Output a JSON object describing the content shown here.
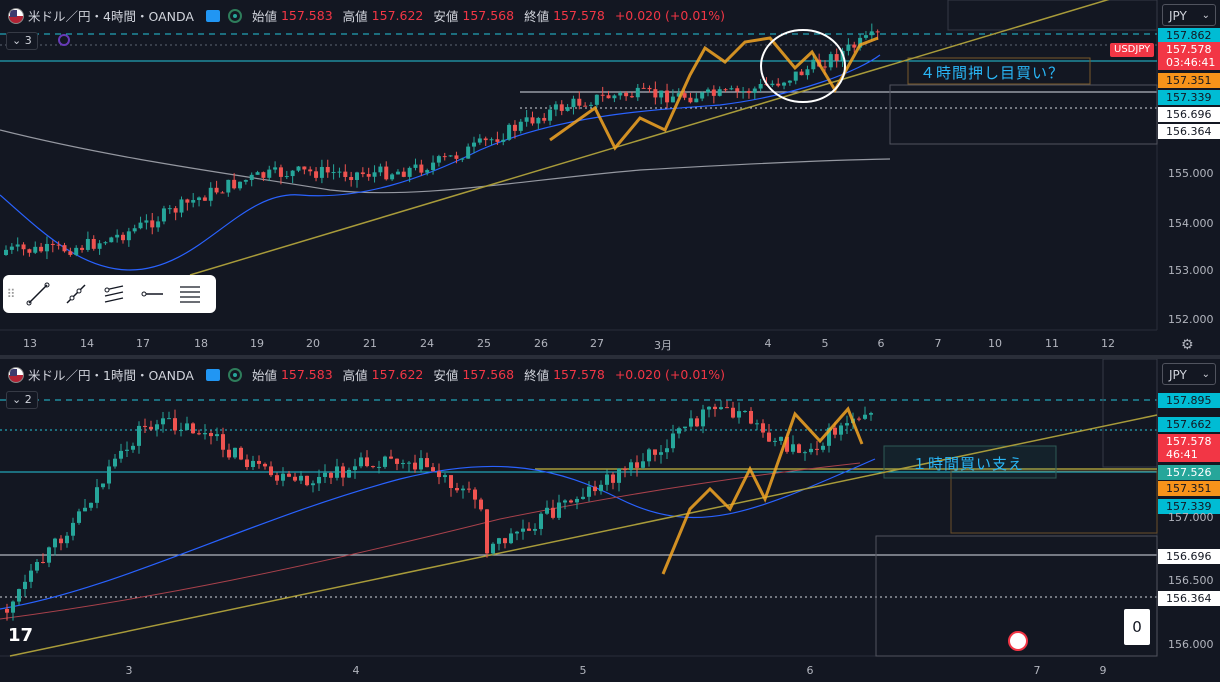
{
  "theme": {
    "bg": "#131722",
    "up": "#26a69a",
    "down": "#ef5350",
    "accent": "#2196f3",
    "highlight": "#f5a623",
    "gold": "#a89b3a"
  },
  "pane1": {
    "header": {
      "symbol": "米ドル／円・4時間・OANDA",
      "open_label": "始値",
      "open": "157.583",
      "high_label": "高値",
      "high": "157.622",
      "low_label": "安値",
      "low": "157.568",
      "close_label": "終値",
      "close": "157.578",
      "change": "+0.020 (+0.01%)"
    },
    "indicator_count": "3",
    "symbol_button": "JPY",
    "symbol_tag": "USDJPY",
    "price_labels": [
      {
        "text": "157.862",
        "bg": "#00bcd4",
        "fg": "#131722"
      },
      {
        "text": "157.578",
        "bg": "#f23645",
        "fg": "#ffffff"
      },
      {
        "text": "03:46:41",
        "bg": "#f23645",
        "fg": "#ffffff"
      },
      {
        "text": "157.351",
        "bg": "#f7931a",
        "fg": "#131722"
      },
      {
        "text": "157.339",
        "bg": "#00bcd4",
        "fg": "#131722"
      },
      {
        "text": "156.696",
        "bg": "#ffffff",
        "fg": "#131722"
      },
      {
        "text": "156.364",
        "bg": "#ffffff",
        "fg": "#131722"
      }
    ],
    "axis_prices": [
      "155.000",
      "154.000",
      "153.000",
      "152.000"
    ],
    "x_labels": [
      "13",
      "14",
      "17",
      "18",
      "19",
      "20",
      "21",
      "24",
      "25",
      "26",
      "27",
      "3月",
      "4",
      "5",
      "6",
      "7",
      "10",
      "11",
      "12"
    ],
    "annotation": "４時間押し目買い？",
    "toolbar_items": [
      "trend-line-icon",
      "ray-icon",
      "parallel-channel-icon",
      "horizontal-ray-icon",
      "fib-icon"
    ]
  },
  "pane2": {
    "header": {
      "symbol": "米ドル／円・1時間・OANDA",
      "open_label": "始値",
      "open": "157.583",
      "high_label": "高値",
      "high": "157.622",
      "low_label": "安値",
      "low": "157.568",
      "close_label": "終値",
      "close": "157.578",
      "change": "+0.020 (+0.01%)"
    },
    "indicator_count": "2",
    "symbol_button": "JPY",
    "price_labels": [
      {
        "text": "157.895",
        "bg": "#00bcd4",
        "fg": "#131722"
      },
      {
        "text": "157.662",
        "bg": "#00bcd4",
        "fg": "#131722"
      },
      {
        "text": "157.578",
        "bg": "#f23645",
        "fg": "#ffffff"
      },
      {
        "text": "46:41",
        "bg": "#f23645",
        "fg": "#ffffff"
      },
      {
        "text": "157.526",
        "bg": "#26a69a",
        "fg": "#ffffff"
      },
      {
        "text": "157.351",
        "bg": "#f7931a",
        "fg": "#131722"
      },
      {
        "text": "157.339",
        "bg": "#00bcd4",
        "fg": "#131722"
      },
      {
        "text": "156.696",
        "bg": "#ffffff",
        "fg": "#131722"
      },
      {
        "text": "156.364",
        "bg": "#ffffff",
        "fg": "#131722"
      }
    ],
    "axis_prices": [
      "157.000",
      "156.500",
      "156.000"
    ],
    "x_labels": [
      "3",
      "4",
      "5",
      "6",
      "7",
      "9"
    ],
    "annotation": "１時間買い支え",
    "zero_badge": "0"
  }
}
